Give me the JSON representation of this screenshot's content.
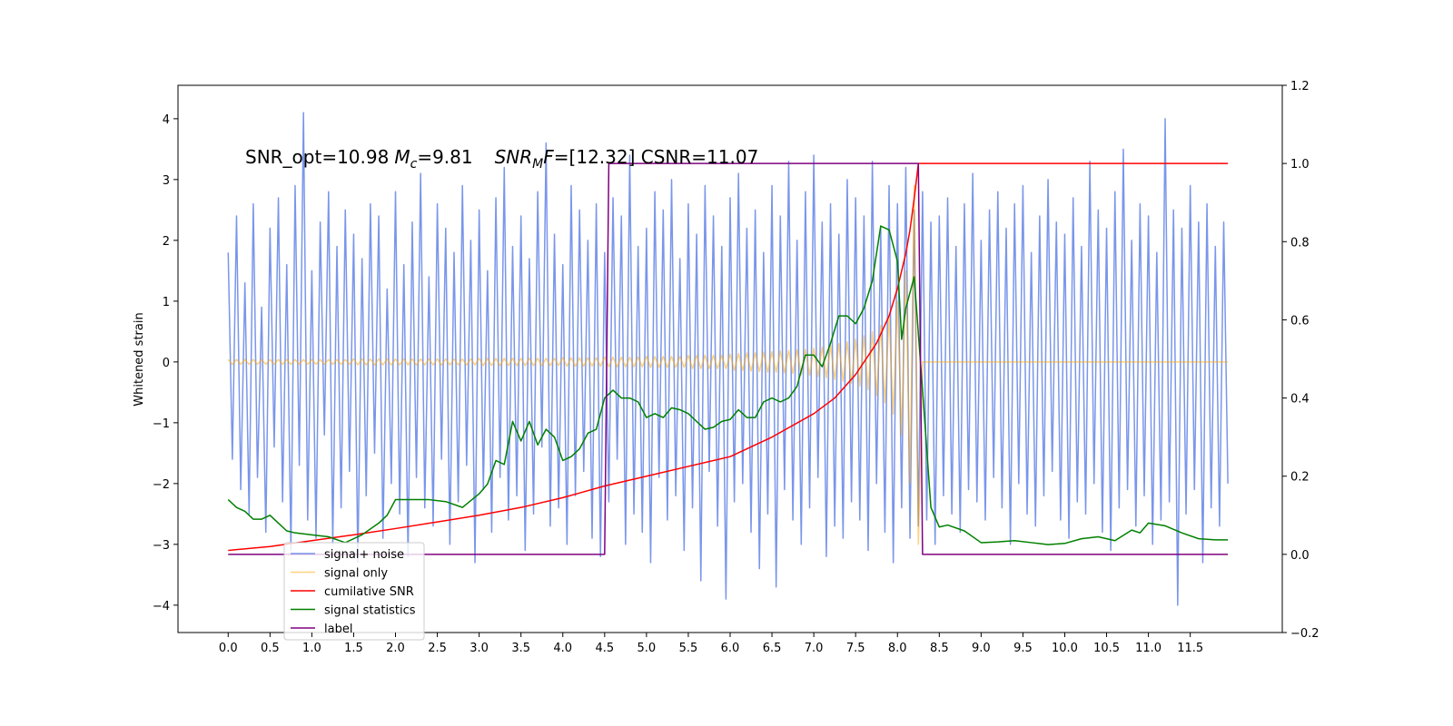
{
  "chart_data": {
    "type": "line",
    "annotation": [
      "SNR_opt=10.98",
      "M",
      "c",
      "=9.81",
      "SNR",
      "M",
      "F",
      "=[12.32] CSNR=11.07"
    ],
    "ylabel": "Whitened strain",
    "xlim": [
      -0.6,
      12.6
    ],
    "ylim": [
      -4.45,
      4.55
    ],
    "y2lim": [
      -0.2,
      1.2
    ],
    "xticks": [
      {
        "value": 0,
        "label": "0.0"
      },
      0.5,
      {
        "value": 1,
        "label": "1.0"
      },
      1.5,
      {
        "value": 2,
        "label": "2.0"
      },
      2.5,
      {
        "value": 3,
        "label": "3.0"
      },
      3.5,
      {
        "value": 4,
        "label": "4.0"
      },
      4.5,
      {
        "value": 5,
        "label": "5.0"
      },
      5.5,
      {
        "value": 6,
        "label": "6.0"
      },
      6.5,
      {
        "value": 7,
        "label": "7.0"
      },
      7.5,
      {
        "value": 8,
        "label": "8.0"
      },
      8.5,
      {
        "value": 9,
        "label": "9.0"
      },
      9.5,
      {
        "value": 10,
        "label": "10.0"
      },
      10.5,
      {
        "value": 11,
        "label": "11.0"
      },
      11.5
    ],
    "yticks": [
      {
        "value": -4,
        "label": "−4"
      },
      {
        "value": -3,
        "label": "−3"
      },
      {
        "value": -2,
        "label": "−2"
      },
      {
        "value": -1,
        "label": "−1"
      },
      0,
      1,
      2,
      3,
      4
    ],
    "y2ticks": [
      {
        "value": -0.2,
        "label": "−0.2"
      },
      {
        "value": 0,
        "label": "0.0"
      },
      0.2,
      0.4,
      0.6,
      0.8,
      {
        "value": 1,
        "label": "1.0"
      },
      1.2
    ],
    "x": [
      0,
      0.05,
      0.1,
      0.15,
      0.2,
      0.25,
      0.3,
      0.35,
      0.4,
      0.45,
      0.5,
      0.55,
      0.6,
      0.65,
      0.7,
      0.75,
      0.8,
      0.85,
      0.9,
      0.95,
      1,
      1.05,
      1.1,
      1.15,
      1.2,
      1.25,
      1.3,
      1.35,
      1.4,
      1.45,
      1.5,
      1.55,
      1.6,
      1.65,
      1.7,
      1.75,
      1.8,
      1.85,
      1.9,
      1.95,
      2,
      2.05,
      2.1,
      2.15,
      2.2,
      2.25,
      2.3,
      2.35,
      2.4,
      2.45,
      2.5,
      2.55,
      2.6,
      2.65,
      2.7,
      2.75,
      2.8,
      2.85,
      2.9,
      2.95,
      3,
      3.05,
      3.1,
      3.15,
      3.2,
      3.25,
      3.3,
      3.35,
      3.4,
      3.45,
      3.5,
      3.55,
      3.6,
      3.65,
      3.7,
      3.75,
      3.8,
      3.85,
      3.9,
      3.95,
      4,
      4.05,
      4.1,
      4.15,
      4.2,
      4.25,
      4.3,
      4.35,
      4.4,
      4.45,
      4.5,
      4.55,
      4.6,
      4.65,
      4.7,
      4.75,
      4.8,
      4.85,
      4.9,
      4.95,
      5,
      5.05,
      5.1,
      5.15,
      5.2,
      5.25,
      5.3,
      5.35,
      5.4,
      5.45,
      5.5,
      5.55,
      5.6,
      5.65,
      5.7,
      5.75,
      5.8,
      5.85,
      5.9,
      5.95,
      6,
      6.05,
      6.1,
      6.15,
      6.2,
      6.25,
      6.3,
      6.35,
      6.4,
      6.45,
      6.5,
      6.55,
      6.6,
      6.65,
      6.7,
      6.75,
      6.8,
      6.85,
      6.9,
      6.95,
      7,
      7.05,
      7.1,
      7.15,
      7.2,
      7.25,
      7.3,
      7.35,
      7.4,
      7.45,
      7.5,
      7.55,
      7.6,
      7.65,
      7.7,
      7.75,
      7.8,
      7.85,
      7.9,
      7.95,
      8,
      8.05,
      8.1,
      8.15,
      8.2,
      8.25,
      8.3,
      8.35,
      8.4,
      8.45,
      8.5,
      8.55,
      8.6,
      8.65,
      8.7,
      8.75,
      8.8,
      8.85,
      8.9,
      8.95,
      9,
      9.05,
      9.1,
      9.15,
      9.2,
      9.25,
      9.3,
      9.35,
      9.4,
      9.45,
      9.5,
      9.55,
      9.6,
      9.65,
      9.7,
      9.75,
      9.8,
      9.85,
      9.9,
      9.95,
      10,
      10.05,
      10.1,
      10.15,
      10.2,
      10.25,
      10.3,
      10.35,
      10.4,
      10.45,
      10.5,
      10.55,
      10.6,
      10.65,
      10.7,
      10.75,
      10.8,
      10.85,
      10.9,
      10.95,
      11,
      11.05,
      11.1,
      11.15,
      11.2,
      11.25,
      11.3,
      11.35,
      11.4,
      11.45,
      11.5,
      11.55,
      11.6,
      11.65,
      11.7,
      11.75,
      11.8,
      11.85,
      11.9,
      11.95
    ],
    "series": [
      {
        "name": "signal+ noise",
        "color": "#4169e1",
        "alpha": 0.7,
        "values": [
          1.8,
          -1.6,
          2.4,
          -2.1,
          1.3,
          -2.5,
          2.6,
          -1.9,
          0.9,
          -2.8,
          2.2,
          -1.4,
          2.7,
          -2.3,
          1.6,
          -3.1,
          2.9,
          -1.7,
          4.1,
          -2.6,
          1.5,
          -2.9,
          2.3,
          -1.2,
          2.8,
          -3.0,
          1.9,
          -2.4,
          2.5,
          -1.8,
          2.1,
          -3.3,
          1.7,
          -2.2,
          2.6,
          -1.5,
          2.4,
          -2.9,
          1.2,
          -2.0,
          2.8,
          -2.5,
          1.6,
          -3.2,
          2.3,
          -1.9,
          3.1,
          -2.4,
          1.4,
          -2.7,
          2.6,
          -1.6,
          2.2,
          -3.0,
          1.8,
          -2.3,
          2.9,
          -1.7,
          2.0,
          -3.3,
          2.5,
          -2.1,
          1.5,
          -2.8,
          2.7,
          -1.9,
          3.2,
          -2.6,
          1.9,
          -2.2,
          2.4,
          -3.1,
          1.7,
          -2.5,
          2.8,
          -1.4,
          3.6,
          -2.7,
          2.1,
          -2.4,
          1.6,
          -3.0,
          2.9,
          -2.2,
          2.5,
          -1.8,
          2.0,
          -2.9,
          2.6,
          -3.2,
          1.8,
          -2.3,
          2.7,
          -1.6,
          2.4,
          -3.0,
          3.4,
          -2.5,
          1.9,
          -2.8,
          2.2,
          -3.3,
          2.8,
          -1.9,
          2.5,
          -2.6,
          3.0,
          -2.2,
          1.7,
          -3.1,
          2.6,
          -2.4,
          2.1,
          -3.6,
          2.9,
          -1.8,
          2.4,
          -2.7,
          1.9,
          -3.9,
          2.7,
          -2.3,
          3.1,
          -2.0,
          2.2,
          -2.8,
          2.5,
          -3.4,
          1.8,
          -2.5,
          2.9,
          -3.7,
          2.4,
          -2.1,
          3.3,
          -2.6,
          2.0,
          -3.0,
          2.8,
          -2.4,
          3.4,
          -1.9,
          2.3,
          -3.2,
          2.6,
          -2.7,
          2.1,
          -2.9,
          3.0,
          -2.3,
          2.7,
          -2.6,
          2.4,
          -3.1,
          3.3,
          -2.0,
          2.2,
          -2.8,
          2.9,
          -3.3,
          2.6,
          -2.4,
          3.2,
          -2.9,
          2.5,
          -2.7,
          2.8,
          -2.6,
          2.3,
          -3.0,
          2.4,
          -2.2,
          2.7,
          -2.5,
          1.9,
          -2.8,
          2.6,
          -2.1,
          3.1,
          -2.3,
          2.0,
          -2.6,
          2.5,
          -1.9,
          2.8,
          -2.4,
          2.2,
          -3.0,
          2.6,
          -2.0,
          2.9,
          -2.5,
          1.8,
          -2.7,
          2.4,
          -2.2,
          3.0,
          -1.8,
          2.3,
          -2.6,
          2.1,
          -2.9,
          2.7,
          -2.3,
          1.9,
          -2.5,
          3.3,
          -2.0,
          2.5,
          -2.8,
          2.2,
          -3.1,
          2.8,
          -2.4,
          3.5,
          -2.1,
          2.0,
          -2.7,
          2.6,
          -2.2,
          2.4,
          -3.0,
          1.8,
          -2.6,
          4.0,
          -2.3,
          2.5,
          -4.0,
          2.2,
          -2.5,
          2.9,
          -2.1,
          2.3,
          -3.3,
          2.6,
          -2.4,
          1.9,
          -2.7,
          2.3,
          -2.0
        ]
      },
      {
        "name": "signal only",
        "color": "#ffa500",
        "alpha": 0.5,
        "values": [
          0.04,
          -0.04,
          0.04,
          -0.04,
          0.04,
          -0.04,
          0.04,
          -0.04,
          0.04,
          -0.04,
          0.04,
          -0.04,
          0.04,
          -0.04,
          0.04,
          -0.04,
          0.04,
          -0.04,
          0.04,
          -0.04,
          0.04,
          -0.04,
          0.04,
          -0.04,
          0.04,
          -0.04,
          0.04,
          -0.04,
          0.04,
          -0.04,
          0.05,
          -0.05,
          0.05,
          -0.05,
          0.05,
          -0.05,
          0.05,
          -0.05,
          0.05,
          -0.05,
          0.05,
          -0.05,
          0.05,
          -0.05,
          0.05,
          -0.05,
          0.05,
          -0.05,
          0.05,
          -0.05,
          0.05,
          -0.05,
          0.05,
          -0.05,
          0.05,
          -0.05,
          0.05,
          -0.05,
          0.05,
          -0.05,
          0.06,
          -0.06,
          0.06,
          -0.06,
          0.06,
          -0.06,
          0.06,
          -0.06,
          0.06,
          -0.06,
          0.06,
          -0.06,
          0.06,
          -0.06,
          0.06,
          -0.06,
          0.06,
          -0.06,
          0.06,
          -0.06,
          0.07,
          -0.07,
          0.07,
          -0.07,
          0.07,
          -0.07,
          0.07,
          -0.07,
          0.07,
          -0.07,
          0.08,
          -0.08,
          0.08,
          -0.08,
          0.08,
          -0.08,
          0.08,
          -0.08,
          0.08,
          -0.08,
          0.09,
          -0.09,
          0.09,
          -0.09,
          0.09,
          -0.09,
          0.09,
          -0.09,
          0.09,
          -0.09,
          0.11,
          -0.11,
          0.11,
          -0.11,
          0.11,
          -0.11,
          0.11,
          -0.11,
          0.11,
          -0.11,
          0.13,
          -0.14,
          0.14,
          -0.14,
          0.15,
          -0.15,
          0.15,
          -0.16,
          0.16,
          -0.17,
          0.17,
          -0.17,
          0.18,
          -0.18,
          0.19,
          -0.19,
          0.2,
          -0.21,
          0.21,
          -0.22,
          0.23,
          -0.24,
          0.25,
          -0.26,
          0.27,
          -0.29,
          0.3,
          -0.32,
          0.33,
          -0.35,
          0.38,
          -0.4,
          0.43,
          -0.46,
          0.5,
          -0.55,
          0.6,
          -0.67,
          0.75,
          -0.86,
          1.0,
          -1.2,
          1.5,
          -2.0,
          2.9,
          -3.0,
          0,
          0,
          0,
          0,
          0,
          0,
          0,
          0,
          0,
          0,
          0,
          0,
          0,
          0,
          0,
          0,
          0,
          0,
          0,
          0,
          0,
          0,
          0,
          0,
          0,
          0,
          0,
          0,
          0,
          0,
          0,
          0,
          0,
          0,
          0,
          0,
          0,
          0,
          0,
          0,
          0,
          0,
          0,
          0,
          0,
          0,
          0,
          0,
          0,
          0,
          0,
          0,
          0,
          0,
          0,
          0,
          0,
          0,
          0,
          0,
          0,
          0,
          0,
          0,
          0,
          0,
          0,
          0,
          0,
          0,
          0,
          0,
          0,
          0
        ]
      },
      {
        "name": "cumilative SNR",
        "color": "#ff0000",
        "axis": "y2",
        "x": [
          0,
          0.5,
          1,
          1.5,
          2,
          2.5,
          3,
          3.5,
          4,
          4.5,
          5,
          5.5,
          6,
          6.5,
          7,
          7.25,
          7.5,
          7.75,
          7.9,
          8,
          8.1,
          8.15,
          8.2,
          8.25,
          11.95
        ],
        "values": [
          0.01,
          0.02,
          0.035,
          0.05,
          0.066,
          0.083,
          0.1,
          0.12,
          0.145,
          0.175,
          0.2,
          0.225,
          0.25,
          0.3,
          0.36,
          0.4,
          0.46,
          0.54,
          0.61,
          0.68,
          0.77,
          0.83,
          0.91,
          1.0,
          1.0
        ]
      },
      {
        "name": "signal statistics",
        "color": "#008000",
        "axis": "y2",
        "x": [
          0,
          0.1,
          0.2,
          0.3,
          0.4,
          0.5,
          0.6,
          0.7,
          0.8,
          1.0,
          1.2,
          1.4,
          1.6,
          1.8,
          1.9,
          2.0,
          2.2,
          2.4,
          2.6,
          2.8,
          3.0,
          3.1,
          3.2,
          3.3,
          3.4,
          3.5,
          3.6,
          3.7,
          3.8,
          3.9,
          4.0,
          4.1,
          4.2,
          4.3,
          4.4,
          4.5,
          4.6,
          4.7,
          4.8,
          4.9,
          5.0,
          5.1,
          5.2,
          5.3,
          5.4,
          5.5,
          5.6,
          5.7,
          5.8,
          5.9,
          6.0,
          6.1,
          6.2,
          6.3,
          6.4,
          6.5,
          6.6,
          6.7,
          6.8,
          6.9,
          7.0,
          7.1,
          7.2,
          7.3,
          7.4,
          7.5,
          7.6,
          7.7,
          7.8,
          7.9,
          8.0,
          8.05,
          8.1,
          8.2,
          8.3,
          8.4,
          8.5,
          8.6,
          8.8,
          9.0,
          9.2,
          9.4,
          9.6,
          9.8,
          10.0,
          10.2,
          10.4,
          10.6,
          10.8,
          10.9,
          11.0,
          11.2,
          11.4,
          11.6,
          11.8,
          11.95
        ],
        "values": [
          0.14,
          0.12,
          0.11,
          0.09,
          0.09,
          0.1,
          0.08,
          0.06,
          0.055,
          0.05,
          0.045,
          0.03,
          0.05,
          0.08,
          0.1,
          0.14,
          0.14,
          0.14,
          0.135,
          0.12,
          0.155,
          0.18,
          0.24,
          0.23,
          0.34,
          0.29,
          0.34,
          0.28,
          0.32,
          0.3,
          0.24,
          0.25,
          0.27,
          0.31,
          0.32,
          0.4,
          0.42,
          0.4,
          0.4,
          0.39,
          0.35,
          0.36,
          0.35,
          0.375,
          0.37,
          0.36,
          0.34,
          0.32,
          0.325,
          0.34,
          0.345,
          0.37,
          0.35,
          0.35,
          0.39,
          0.4,
          0.39,
          0.4,
          0.43,
          0.51,
          0.51,
          0.48,
          0.54,
          0.61,
          0.61,
          0.59,
          0.63,
          0.7,
          0.84,
          0.83,
          0.75,
          0.55,
          0.63,
          0.71,
          0.42,
          0.12,
          0.07,
          0.075,
          0.06,
          0.03,
          0.032,
          0.035,
          0.03,
          0.025,
          0.028,
          0.04,
          0.045,
          0.035,
          0.062,
          0.055,
          0.08,
          0.073,
          0.055,
          0.04,
          0.037,
          0.037
        ]
      },
      {
        "name": "label",
        "color": "#800080",
        "axis": "y2",
        "x": [
          0,
          4.5,
          4.55,
          8.25,
          8.3,
          11.95
        ],
        "values": [
          0,
          0,
          1,
          1,
          0,
          0
        ]
      }
    ]
  }
}
